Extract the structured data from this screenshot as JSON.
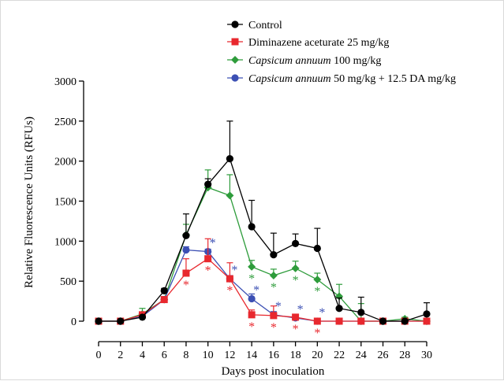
{
  "chart_data": {
    "type": "line",
    "xlabel": "Days post inoculation",
    "ylabel": "Relative Fluorescence Units (RFUs)",
    "x": [
      0,
      2,
      4,
      6,
      8,
      10,
      12,
      14,
      16,
      18,
      20,
      22,
      24,
      26,
      28,
      30
    ],
    "xlim": [
      0,
      30
    ],
    "ylim": [
      0,
      3000
    ],
    "y_ticks": [
      0,
      500,
      1000,
      1500,
      2000,
      2500,
      3000
    ],
    "legend_position": "top-right",
    "series": [
      {
        "name": "Control",
        "color": "#000000",
        "marker": "circle",
        "values": [
          0,
          0,
          50,
          380,
          1070,
          1710,
          2030,
          1180,
          830,
          970,
          910,
          160,
          110,
          0,
          0,
          90
        ],
        "error": [
          0,
          0,
          10,
          30,
          270,
          70,
          470,
          330,
          270,
          120,
          250,
          130,
          190,
          0,
          0,
          140
        ]
      },
      {
        "name": "Diminazene aceturate 25 mg/kg",
        "color": "#e8282e",
        "marker": "square",
        "values": [
          0,
          0,
          80,
          270,
          600,
          780,
          530,
          80,
          70,
          50,
          0,
          0,
          0,
          0,
          0,
          0
        ],
        "error": [
          0,
          0,
          20,
          30,
          180,
          250,
          200,
          60,
          120,
          30,
          0,
          0,
          0,
          0,
          0,
          0
        ],
        "significant_x": [
          8,
          10,
          12,
          14,
          16,
          18,
          20
        ]
      },
      {
        "name": "Capsicum annuum 100 mg/kg",
        "name_parts": [
          "Capsicum annuum",
          " 100 mg/kg"
        ],
        "color": "#2e9c3b",
        "marker": "diamond",
        "values": [
          0,
          0,
          90,
          270,
          1080,
          1670,
          1570,
          680,
          570,
          660,
          520,
          310,
          0,
          0,
          30,
          0
        ],
        "error": [
          0,
          0,
          70,
          30,
          130,
          220,
          260,
          80,
          80,
          90,
          80,
          150,
          220,
          0,
          20,
          0
        ],
        "significant_x": [
          14,
          16,
          18,
          20
        ]
      },
      {
        "name": "Capsicum annuum 50 mg/kg + 12.5 DA mg/kg",
        "name_parts": [
          "Capsicum annuum",
          " 50 mg/kg + 12.5 DA mg/kg"
        ],
        "color": "#3c50b4",
        "marker": "circle",
        "values": [
          0,
          0,
          60,
          270,
          890,
          870,
          530,
          280,
          80,
          40,
          0,
          0,
          0,
          0,
          0,
          0
        ],
        "error": [
          0,
          0,
          20,
          30,
          40,
          30,
          40,
          60,
          40,
          20,
          0,
          0,
          0,
          0,
          0,
          0
        ],
        "significant_x": [
          10,
          12,
          14,
          16,
          18,
          20
        ]
      }
    ],
    "annotation_symbol": "*"
  }
}
